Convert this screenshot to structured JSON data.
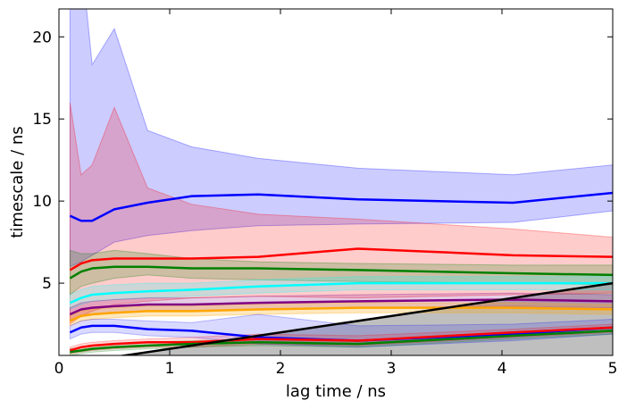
{
  "chart_data": {
    "type": "line",
    "xlabel": "lag time / ns",
    "ylabel": "timescale / ns",
    "xlim": [
      0,
      5
    ],
    "ylim": [
      0.6,
      21.7
    ],
    "xticks": [
      0,
      1,
      2,
      3,
      4,
      5
    ],
    "yticks": [
      5,
      10,
      15,
      20
    ],
    "grid": false,
    "x": [
      0.1,
      0.2,
      0.3,
      0.5,
      0.8,
      1.2,
      1.8,
      2.7,
      4.1,
      5.0
    ],
    "series": [
      {
        "color": "#0000ff",
        "band_color": "#0000ff",
        "band_opacity": 0.2,
        "values": [
          9.1,
          8.8,
          8.8,
          9.5,
          9.9,
          10.3,
          10.4,
          10.1,
          9.9,
          10.5
        ],
        "lower": [
          6.0,
          6.3,
          6.7,
          7.5,
          7.9,
          8.2,
          8.5,
          8.6,
          8.7,
          9.4
        ],
        "upper": [
          30,
          25,
          18.3,
          20.5,
          14.3,
          13.3,
          12.6,
          12.0,
          11.6,
          12.2
        ]
      },
      {
        "color": "#ff0000",
        "band_color": "#ff0000",
        "band_opacity": 0.2,
        "values": [
          5.8,
          6.2,
          6.4,
          6.5,
          6.5,
          6.5,
          6.6,
          7.1,
          6.7,
          6.6
        ],
        "lower": [
          2.5,
          3.0,
          3.3,
          3.7,
          3.9,
          4.1,
          4.2,
          4.1,
          4.3,
          4.4
        ],
        "upper": [
          16.0,
          11.6,
          12.2,
          15.7,
          10.8,
          9.8,
          9.2,
          8.9,
          8.3,
          7.8
        ]
      },
      {
        "color": "#008000",
        "band_color": "#008000",
        "band_opacity": 0.2,
        "values": [
          5.3,
          5.7,
          5.9,
          6.0,
          6.0,
          5.9,
          5.9,
          5.8,
          5.6,
          5.5
        ],
        "lower": [
          4.3,
          4.8,
          5.0,
          5.3,
          5.5,
          5.3,
          5.2,
          5.1,
          5.0,
          4.9
        ],
        "upper": [
          7.0,
          6.8,
          6.8,
          7.0,
          6.8,
          6.5,
          6.3,
          6.2,
          6.1,
          6.1
        ]
      },
      {
        "color": "#00ffff",
        "band_color": "#00ffff",
        "band_opacity": 0.2,
        "values": [
          3.8,
          4.1,
          4.3,
          4.4,
          4.5,
          4.6,
          4.8,
          5.0,
          5.0,
          5.0
        ],
        "lower": [
          3.4,
          3.7,
          3.9,
          4.0,
          4.1,
          4.2,
          4.4,
          4.6,
          4.6,
          4.6
        ],
        "upper": [
          4.3,
          4.6,
          4.8,
          4.9,
          5.0,
          5.0,
          5.2,
          5.4,
          5.4,
          5.4
        ]
      },
      {
        "color": "#800080",
        "band_color": "#800080",
        "band_opacity": 0.2,
        "values": [
          3.1,
          3.4,
          3.5,
          3.6,
          3.7,
          3.7,
          3.8,
          3.9,
          4.0,
          3.9
        ],
        "lower": [
          2.7,
          3.0,
          3.1,
          3.2,
          3.3,
          3.3,
          3.4,
          3.5,
          3.6,
          3.5
        ],
        "upper": [
          3.5,
          3.8,
          3.9,
          4.0,
          4.1,
          4.1,
          4.2,
          4.3,
          4.4,
          4.3
        ]
      },
      {
        "color": "#ffa500",
        "band_color": "#ffa500",
        "band_opacity": 0.25,
        "values": [
          2.7,
          3.0,
          3.1,
          3.2,
          3.3,
          3.3,
          3.4,
          3.5,
          3.5,
          3.4
        ],
        "lower": [
          2.4,
          2.7,
          2.8,
          2.9,
          3.0,
          3.0,
          3.1,
          3.2,
          3.2,
          3.1
        ],
        "upper": [
          3.0,
          3.3,
          3.4,
          3.5,
          3.6,
          3.6,
          3.7,
          3.8,
          3.8,
          3.7
        ]
      },
      {
        "color": "#0000ff",
        "band_color": "#0000ff",
        "band_opacity": 0.15,
        "values": [
          2.0,
          2.3,
          2.4,
          2.4,
          2.2,
          2.1,
          1.7,
          1.5,
          1.9,
          2.3
        ],
        "lower": [
          1.6,
          1.9,
          2.0,
          2.0,
          1.8,
          1.7,
          1.3,
          1.1,
          1.5,
          1.9
        ],
        "upper": [
          2.4,
          2.7,
          2.8,
          2.8,
          2.7,
          2.6,
          3.1,
          2.4,
          2.5,
          2.8
        ]
      },
      {
        "color": "#ff0000",
        "band_color": "#ff0000",
        "band_opacity": 0.15,
        "values": [
          0.9,
          1.1,
          1.2,
          1.3,
          1.4,
          1.4,
          1.6,
          1.5,
          2.0,
          2.3
        ],
        "lower": [
          0.7,
          0.8,
          0.9,
          1.0,
          1.1,
          1.1,
          1.3,
          1.2,
          1.7,
          2.0
        ],
        "upper": [
          1.1,
          1.3,
          1.4,
          1.5,
          1.6,
          1.7,
          1.9,
          1.8,
          2.2,
          2.5
        ]
      },
      {
        "color": "#008000",
        "band_color": "#008000",
        "band_opacity": 0.15,
        "values": [
          0.8,
          0.9,
          1.0,
          1.1,
          1.2,
          1.3,
          1.4,
          1.3,
          1.8,
          2.1
        ],
        "lower": [
          0.6,
          0.7,
          0.8,
          0.9,
          1.0,
          1.1,
          1.2,
          1.1,
          1.6,
          1.9
        ],
        "upper": [
          1.0,
          1.1,
          1.2,
          1.3,
          1.4,
          1.5,
          1.6,
          1.5,
          2.0,
          2.3
        ]
      }
    ],
    "reference_line": {
      "color": "#000000",
      "x": [
        0.1,
        5.0
      ],
      "y": [
        0.1,
        5.0
      ],
      "fill": "#808080",
      "fill_opacity": 0.5
    }
  }
}
